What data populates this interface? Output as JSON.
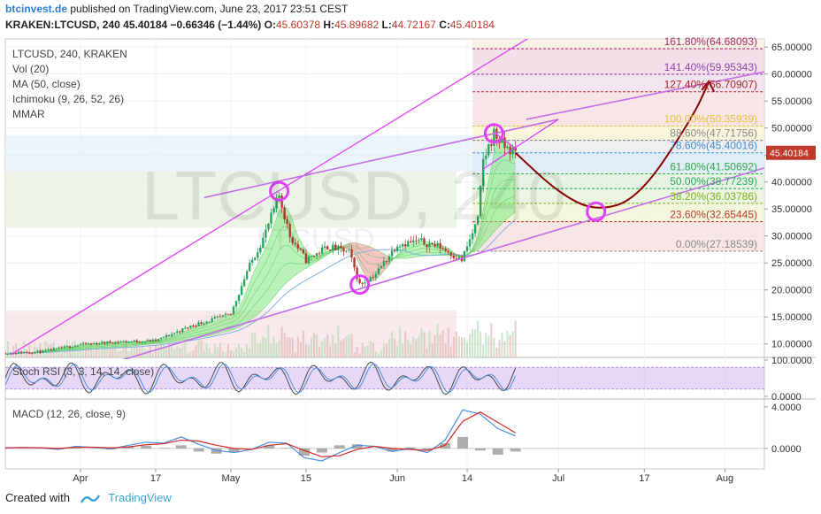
{
  "header": {
    "site": "btcinvest.de",
    "published": "published on TradingView.com, June 23, 2017 23:51 CEST",
    "symbol": "KRAKEN:LTCUSD, 240",
    "last": "45.40184",
    "change": "−0.66346 (−1.44%)",
    "o_label": "O:",
    "o": "45.60378",
    "h_label": "H:",
    "h": "45.89682",
    "l_label": "L:",
    "l": "44.72167",
    "c_label": "C:",
    "c": "45.40184"
  },
  "legend": [
    "LTCUSD, 240, KRAKEN",
    "Vol (20)",
    "MA (50, close)",
    "Ichimoku (9, 26, 52, 26)",
    "MMAR"
  ],
  "watermark": {
    "main": "LTCUSD, 240",
    "sub": "LTCUSD"
  },
  "footer": {
    "created": "Created with",
    "brand": "TradingView"
  },
  "colors": {
    "candle_up": "#26a65b",
    "candle_down": "#b03a2e",
    "trend": "#c36de8",
    "fib_line": "#b43ad8",
    "magenta": "#e040fb",
    "arrow": "#8b0000",
    "ribbon": "#7ee87e",
    "ribbon_red": "#ee8f8f",
    "stoch": "#c9a8ee",
    "macd": "#4a8fe0",
    "signal": "#d62828",
    "price_label": "#c0392b"
  },
  "chart_data": [
    {
      "type": "line",
      "panel": "price",
      "title": "LTCUSD, 240, KRAKEN",
      "y_scale": "linear",
      "ylim": [
        7.5,
        66.5
      ],
      "y_ticks": [
        "65.00000",
        "60.00000",
        "55.00000",
        "50.00000",
        "45.00000",
        "40.00000",
        "35.00000",
        "30.00000",
        "25.00000",
        "20.00000",
        "15.00000",
        "10.00000"
      ],
      "x_tick_labels": [
        "Apr",
        "17",
        "May",
        "15",
        "Jun",
        "14",
        "Jul",
        "17",
        "Aug"
      ],
      "last_price": "45.40184",
      "price_path": [
        {
          "x": "2017-03-20",
          "y": 8.3
        },
        {
          "x": "2017-03-27",
          "y": 8.6
        },
        {
          "x": "2017-04-03",
          "y": 9.9
        },
        {
          "x": "2017-04-10",
          "y": 10.4
        },
        {
          "x": "2017-04-17",
          "y": 10.6
        },
        {
          "x": "2017-04-24",
          "y": 13.5
        },
        {
          "x": "2017-05-01",
          "y": 15.5
        },
        {
          "x": "2017-05-04",
          "y": 23.5
        },
        {
          "x": "2017-05-07",
          "y": 29.5
        },
        {
          "x": "2017-05-10",
          "y": 37.5
        },
        {
          "x": "2017-05-12",
          "y": 30.0
        },
        {
          "x": "2017-05-15",
          "y": 25.5
        },
        {
          "x": "2017-05-19",
          "y": 28.0
        },
        {
          "x": "2017-05-23",
          "y": 27.0
        },
        {
          "x": "2017-05-25",
          "y": 21.0
        },
        {
          "x": "2017-05-28",
          "y": 23.0
        },
        {
          "x": "2017-06-01",
          "y": 28.5
        },
        {
          "x": "2017-06-05",
          "y": 29.0
        },
        {
          "x": "2017-06-09",
          "y": 28.0
        },
        {
          "x": "2017-06-13",
          "y": 25.5
        },
        {
          "x": "2017-06-16",
          "y": 33.0
        },
        {
          "x": "2017-06-17",
          "y": 44.0
        },
        {
          "x": "2017-06-19",
          "y": 49.0
        },
        {
          "x": "2017-06-21",
          "y": 46.5
        },
        {
          "x": "2017-06-23",
          "y": 45.4
        }
      ],
      "projection": [
        {
          "x": "2017-06-23",
          "y": 45.4
        },
        {
          "x": "2017-07-01",
          "y": 38.0
        },
        {
          "x": "2017-07-08",
          "y": 34.5
        },
        {
          "x": "2017-07-16",
          "y": 37.0
        },
        {
          "x": "2017-07-26",
          "y": 52.0
        },
        {
          "x": "2017-07-29",
          "y": 58.5
        }
      ],
      "fibonacci": [
        {
          "label": "161.80%(64.68093)",
          "value": 64.68093,
          "color": "#b02a6a"
        },
        {
          "label": "141.40%(59.95343)",
          "value": 59.95343,
          "color": "#8e44ad"
        },
        {
          "label": "127.40%(56.70907)",
          "value": 56.70907,
          "color": "#b22222"
        },
        {
          "label": "100.00%(50.35939)",
          "value": 50.35939,
          "color": "#e5c33a"
        },
        {
          "label": "88.60%(47.71756)",
          "value": 47.71756,
          "color": "#888888"
        },
        {
          "label": "78.60%(45.40016)",
          "value": 45.40016,
          "color": "#3b8fd6"
        },
        {
          "label": "61.80%(41.50692)",
          "value": 41.50692,
          "color": "#2eae3e"
        },
        {
          "label": "50.00%(38.77239)",
          "value": 38.77239,
          "color": "#27ae60"
        },
        {
          "label": "38.20%(36.03786)",
          "value": 36.03786,
          "color": "#7bb31a"
        },
        {
          "label": "23.60%(32.65445)",
          "value": 32.65445,
          "color": "#c0392b"
        },
        {
          "label": "0.00%(27.18539)",
          "value": 27.18539,
          "color": "#888888"
        }
      ],
      "markers": [
        {
          "x": "2017-05-10",
          "y": 38.3
        },
        {
          "x": "2017-05-25",
          "y": 21.0
        },
        {
          "x": "2017-06-19",
          "y": 49.0
        },
        {
          "x": "2017-07-08",
          "y": 34.5
        }
      ]
    },
    {
      "type": "line",
      "panel": "oscillator",
      "title": "Stoch RSI (3, 3, 14, 14, close)",
      "ylim": [
        0,
        100
      ],
      "y_ticks": [
        "100.0000",
        "0.0000"
      ],
      "band": [
        20,
        80
      ]
    },
    {
      "type": "line",
      "panel": "oscillator",
      "title": "MACD (12, 26, close, 9)",
      "ylim": [
        -1.8,
        4.5
      ],
      "y_ticks": [
        "4.0000",
        "0.0000"
      ],
      "series": [
        {
          "values": [
            0.05,
            0.1,
            0.05,
            -0.1,
            0.2,
            0.1,
            -0.05,
            0.3,
            0.6,
            0.5,
            1.1,
            0.4,
            -0.2,
            -0.4,
            -0.1,
            0.6,
            0.5,
            -0.9,
            -1.2,
            -0.4,
            0.3,
            0.2,
            -0.3,
            0.0,
            -0.4,
            0.8,
            3.7,
            3.3,
            1.9,
            1.2
          ]
        },
        {
          "values": [
            0.05,
            0.08,
            0.06,
            0.0,
            0.1,
            0.12,
            0.05,
            0.15,
            0.35,
            0.45,
            0.8,
            0.7,
            0.3,
            0.0,
            -0.1,
            0.3,
            0.45,
            -0.2,
            -0.8,
            -0.7,
            -0.1,
            0.2,
            0.0,
            -0.1,
            -0.2,
            0.3,
            2.6,
            3.5,
            2.5,
            1.5
          ]
        }
      ]
    }
  ]
}
